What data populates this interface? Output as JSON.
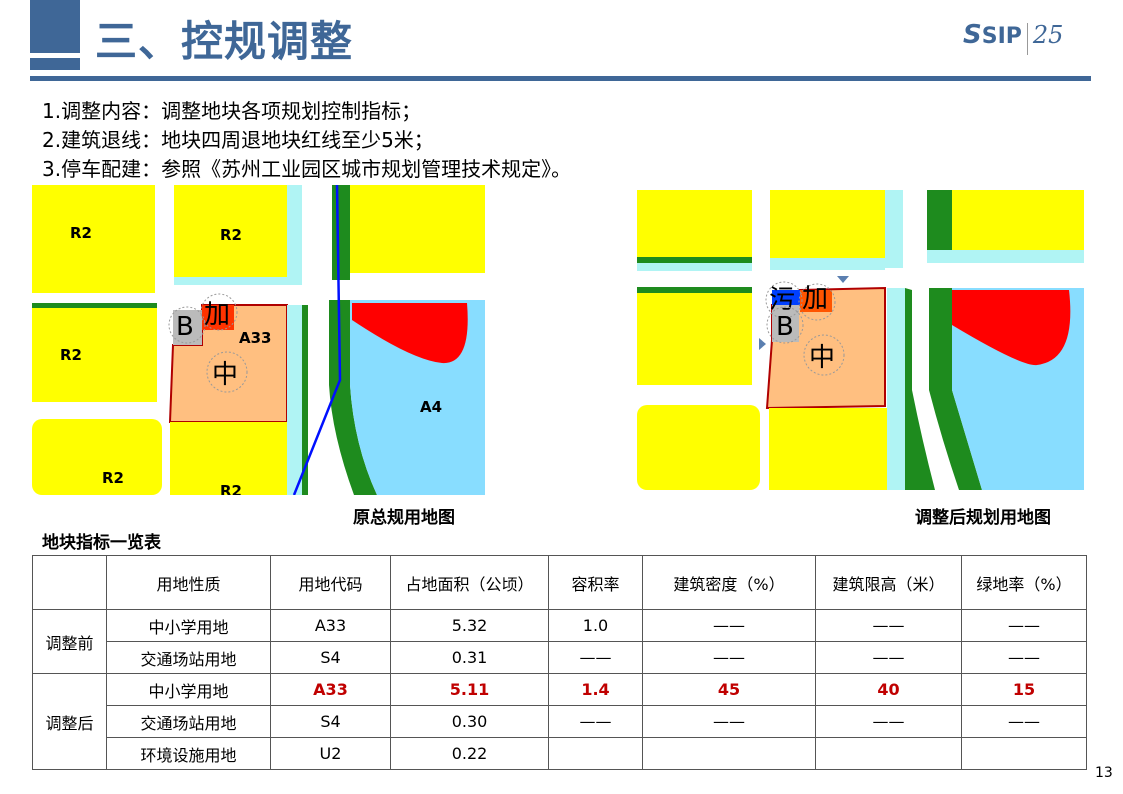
{
  "header": {
    "title": "三、控规调整",
    "logo_text": "SIP",
    "logo_badge": "25",
    "accent": "#3F6797"
  },
  "bullets": [
    "1.调整内容：调整地块各项规划控制指标；",
    "2.建筑退线：地块四周退地块红线至少5米；",
    "3.停车配建：参照《苏州工业园区城市规划管理技术规定》。"
  ],
  "maps": {
    "before": {
      "caption": "原总规用地图",
      "labels": [
        "R2",
        "R2",
        "R2",
        "A33",
        "A4",
        "R2",
        "R2"
      ],
      "markers": [
        "B",
        "加",
        "中"
      ]
    },
    "after": {
      "caption": "调整后规划用地图",
      "markers": [
        "污",
        "加",
        "B",
        "中"
      ]
    }
  },
  "table": {
    "title": "地块指标一览表",
    "headers": [
      "",
      "用地性质",
      "用地代码",
      "占地面积（公顷）",
      "容积率",
      "建筑密度（%）",
      "建筑限高（米）",
      "绿地率（%）"
    ],
    "groups": [
      {
        "label": "调整前",
        "rows": [
          [
            "中小学用地",
            "A33",
            "5.32",
            "1.0",
            "——",
            "——",
            "——"
          ],
          [
            "交通场站用地",
            "S4",
            "0.31",
            "——",
            "——",
            "——",
            "——"
          ]
        ]
      },
      {
        "label": "调整后",
        "rows": [
          [
            "中小学用地",
            "A33",
            "5.11",
            "1.4",
            "45",
            "40",
            "15"
          ],
          [
            "交通场站用地",
            "S4",
            "0.30",
            "——",
            "——",
            "——",
            "——"
          ],
          [
            "环境设施用地",
            "U2",
            "0.22",
            "",
            "",
            "",
            ""
          ]
        ]
      }
    ],
    "highlight_color": "#C00000"
  },
  "page_number": "13"
}
